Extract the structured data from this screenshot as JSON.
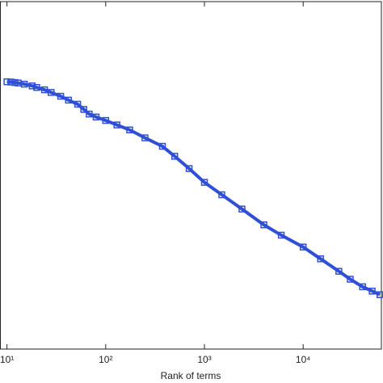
{
  "chart_data": {
    "type": "line",
    "xlabel": "Rank of terms",
    "xscale": "log",
    "yscale": "log",
    "x": [
      10,
      11,
      12,
      13,
      15,
      18,
      20,
      24,
      28,
      35,
      42,
      52,
      60,
      68,
      80,
      100,
      130,
      175,
      250,
      375,
      500,
      700,
      1000,
      1500,
      2400,
      4000,
      6000,
      10000,
      15000,
      23000,
      30000,
      40000,
      50000,
      60000
    ],
    "series": [
      {
        "color": "#2f4fd6",
        "marker": "square",
        "values": [
          473,
          470,
          465,
          460,
          448,
          430,
          415,
          393,
          370,
          339,
          310,
          282,
          250,
          225,
          210,
          194,
          175,
          156,
          130,
          107,
          85,
          64,
          46.6,
          35,
          25.2,
          17.5,
          13.8,
          10.5,
          8.0,
          6.0,
          5.0,
          4.2,
          3.8,
          3.5
        ]
      }
    ],
    "xlim": [
      8.5,
      62000
    ],
    "ylim": [
      1,
      3000
    ],
    "xticks": [
      {
        "value": 10,
        "label": "10¹"
      },
      {
        "value": 100,
        "label": "10²"
      },
      {
        "value": 1000,
        "label": "10³"
      },
      {
        "value": 10000,
        "label": "10⁴"
      }
    ]
  }
}
